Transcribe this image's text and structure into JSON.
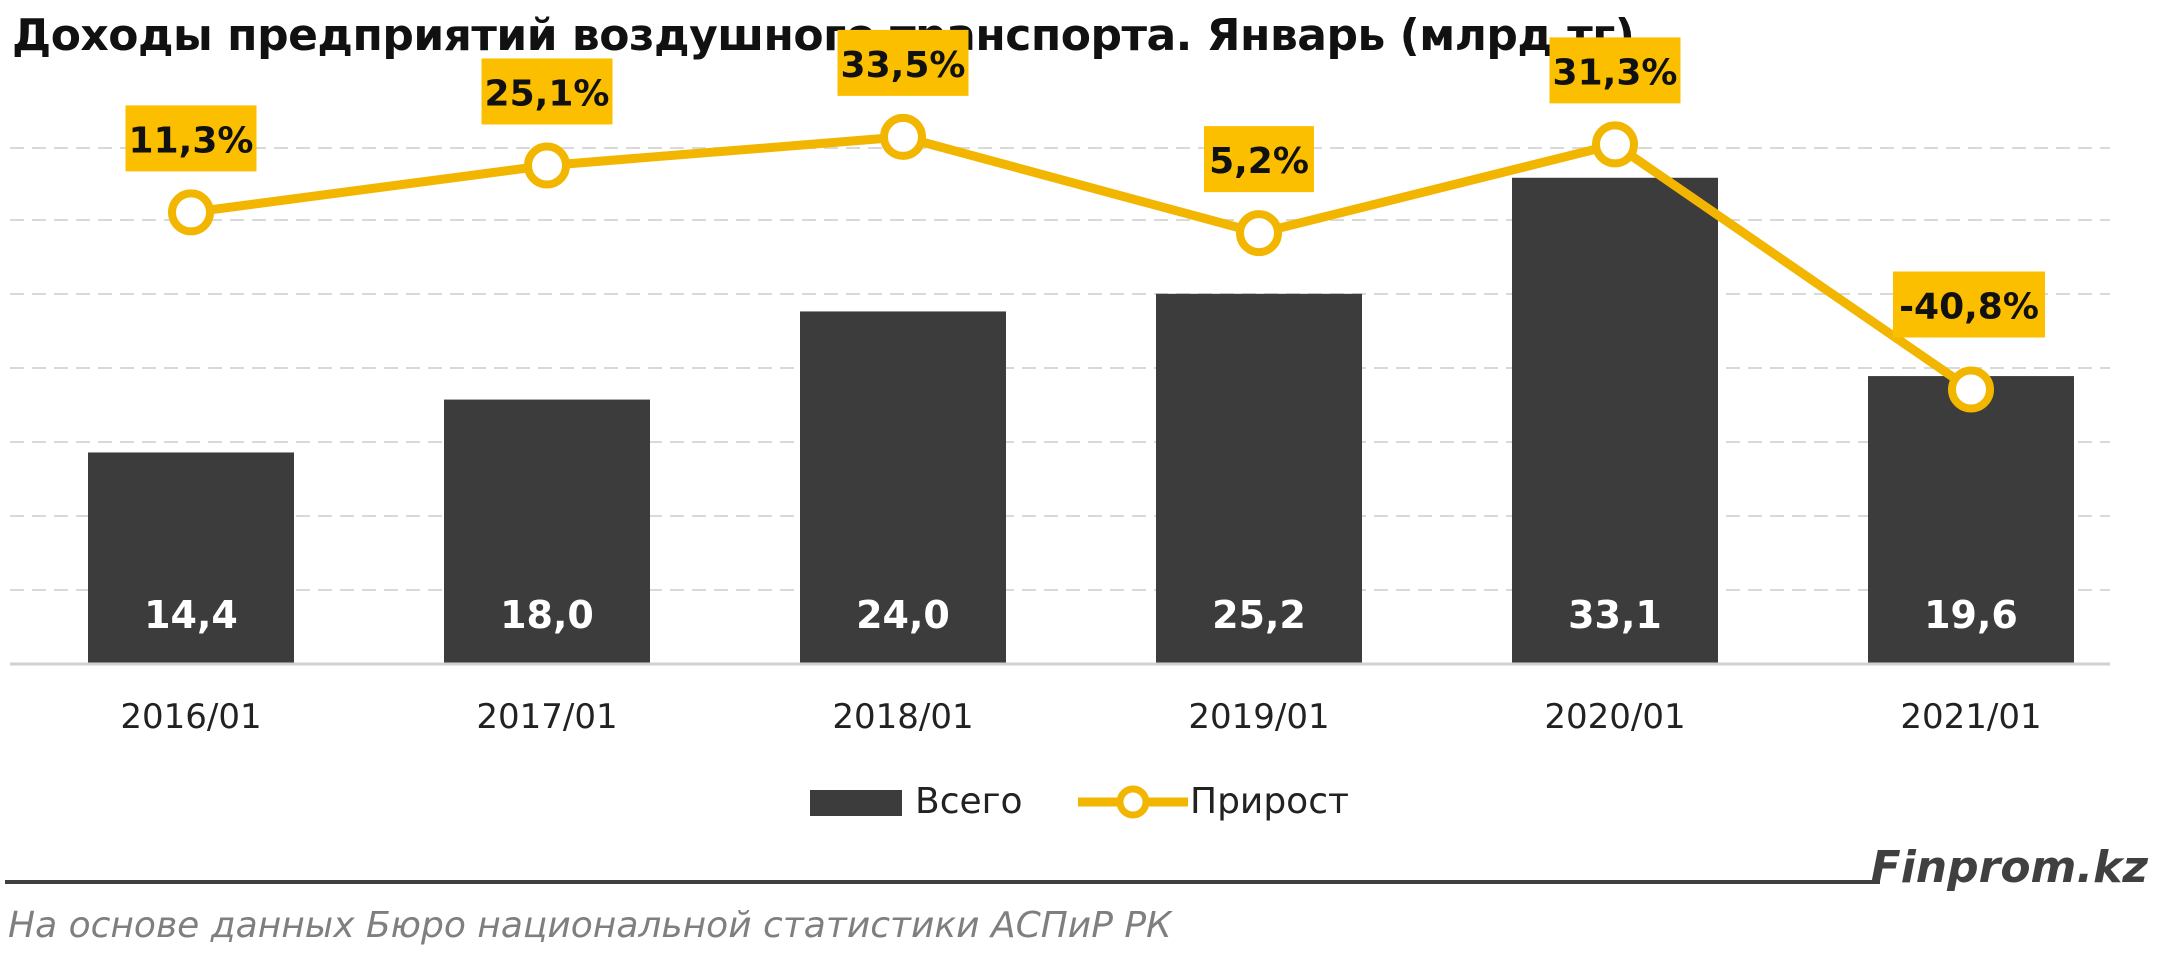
{
  "title": "Доходы предприятий воздушного транспорта. Январь (млрд тг)",
  "brand": "Finprom.kz",
  "source": "На основе данных  Бюро национальной  статистики АСПиР РК",
  "colors": {
    "bar": "#3c3c3c",
    "line": "#f2b600",
    "label_bg": "#fbbf00",
    "grid": "#d9d9d9",
    "text_on_bar": "#ffffff"
  },
  "chart_data": {
    "type": "bar",
    "categories": [
      "2016/01",
      "2017/01",
      "2018/01",
      "2019/01",
      "2020/01",
      "2021/01"
    ],
    "series": [
      {
        "name": "Всего",
        "type": "bar",
        "values": [
          14.4,
          18.0,
          24.0,
          25.2,
          33.1,
          19.6
        ],
        "labels": [
          "14,4",
          "18,0",
          "24,0",
          "25,2",
          "33,1",
          "19,6"
        ]
      },
      {
        "name": "Прирост",
        "type": "line",
        "values": [
          11.3,
          25.1,
          33.5,
          5.2,
          31.3,
          -40.8
        ],
        "labels": [
          "11,3%",
          "25,1%",
          "33,5%",
          "5,2%",
          "31,3%",
          "-40,8%"
        ]
      }
    ],
    "legend": {
      "position": "bottom",
      "entries": [
        "Всего",
        "Прирост"
      ]
    },
    "grid": true
  }
}
